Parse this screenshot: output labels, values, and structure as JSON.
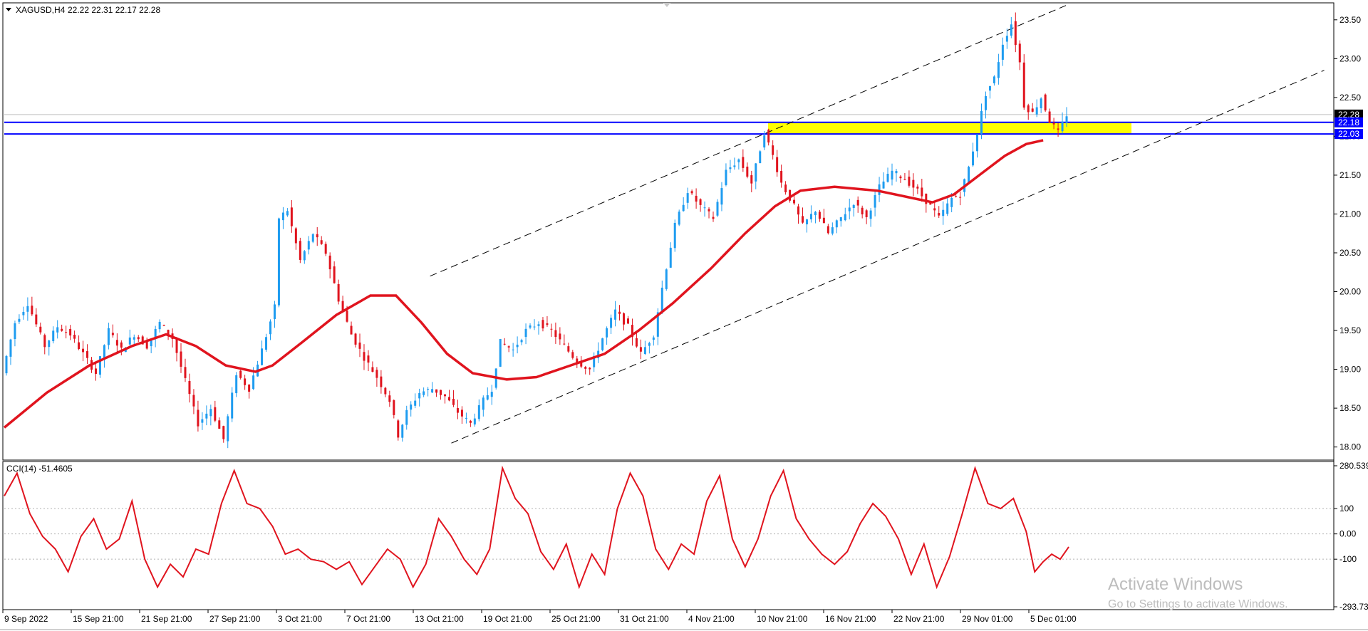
{
  "header": {
    "symbol_label": "XAGUSD,H4",
    "ohlc": "22.22 22.31 22.17 22.28"
  },
  "indicator": {
    "label": "CCI(14) -51.4605"
  },
  "watermark": {
    "line1": "Activate Windows",
    "line2": "Go to Settings to activate Windows."
  },
  "colors": {
    "bull": "#1e9cf0",
    "bear": "#e0141e",
    "ma": "#e0141e",
    "cci": "#e0141e",
    "hline": "#0000ff",
    "zone": "#ffff00",
    "current_tag": "#000000"
  },
  "chart_data": [
    {
      "type": "candlestick",
      "symbol": "XAGUSD",
      "timeframe": "H4",
      "ylim": [
        17.85,
        23.7
      ],
      "y_ticks": [
        "23.50",
        "23.00",
        "22.50",
        "22.00",
        "21.50",
        "21.00",
        "20.50",
        "20.00",
        "19.50",
        "19.00",
        "18.50",
        "18.00"
      ],
      "x_ticks": [
        "9 Sep 2022",
        "15 Sep 21:00",
        "21 Sep 21:00",
        "27 Sep 21:00",
        "3 Oct 21:00",
        "7 Oct 21:00",
        "13 Oct 21:00",
        "19 Oct 21:00",
        "25 Oct 21:00",
        "31 Oct 21:00",
        "4 Nov 21:00",
        "10 Nov 21:00",
        "16 Nov 21:00",
        "22 Nov 21:00",
        "29 Nov 01:00",
        "5 Dec 01:00"
      ],
      "price_tags": [
        {
          "value": "22.28",
          "kind": "current"
        },
        {
          "value": "22.18",
          "kind": "line"
        },
        {
          "value": "22.03",
          "kind": "line"
        }
      ],
      "horizontal_lines": [
        22.18,
        22.03
      ],
      "zone": {
        "from": 22.03,
        "to": 22.18
      },
      "path_points": [
        [
          0,
          18.95
        ],
        [
          6,
          19.6
        ],
        [
          12,
          19.85
        ],
        [
          20,
          19.3
        ],
        [
          26,
          19.55
        ],
        [
          32,
          19.45
        ],
        [
          38,
          19.2
        ],
        [
          44,
          18.95
        ],
        [
          50,
          19.5
        ],
        [
          56,
          19.25
        ],
        [
          62,
          19.45
        ],
        [
          68,
          19.3
        ],
        [
          74,
          19.6
        ],
        [
          80,
          19.4
        ],
        [
          86,
          18.85
        ],
        [
          92,
          18.3
        ],
        [
          98,
          18.5
        ],
        [
          104,
          18.1
        ],
        [
          110,
          18.95
        ],
        [
          116,
          18.75
        ],
        [
          122,
          19.25
        ],
        [
          128,
          19.8
        ],
        [
          130,
          20.95
        ],
        [
          134,
          21.05
        ],
        [
          140,
          20.4
        ],
        [
          146,
          20.75
        ],
        [
          152,
          20.5
        ],
        [
          158,
          19.9
        ],
        [
          164,
          19.45
        ],
        [
          170,
          19.15
        ],
        [
          176,
          18.9
        ],
        [
          182,
          18.6
        ],
        [
          186,
          18.15
        ],
        [
          190,
          18.45
        ],
        [
          196,
          18.7
        ],
        [
          202,
          18.75
        ],
        [
          208,
          18.65
        ],
        [
          214,
          18.45
        ],
        [
          220,
          18.3
        ],
        [
          226,
          18.6
        ],
        [
          230,
          18.75
        ],
        [
          234,
          19.35
        ],
        [
          240,
          19.25
        ],
        [
          246,
          19.5
        ],
        [
          252,
          19.6
        ],
        [
          258,
          19.5
        ],
        [
          264,
          19.3
        ],
        [
          270,
          19.1
        ],
        [
          276,
          19.0
        ],
        [
          282,
          19.4
        ],
        [
          288,
          19.75
        ],
        [
          294,
          19.55
        ],
        [
          300,
          19.2
        ],
        [
          306,
          19.45
        ],
        [
          310,
          20.05
        ],
        [
          316,
          20.85
        ],
        [
          322,
          21.3
        ],
        [
          328,
          21.1
        ],
        [
          334,
          20.95
        ],
        [
          340,
          21.55
        ],
        [
          346,
          21.7
        ],
        [
          352,
          21.4
        ],
        [
          358,
          22.05
        ],
        [
          362,
          21.75
        ],
        [
          366,
          21.4
        ],
        [
          372,
          21.1
        ],
        [
          376,
          20.85
        ],
        [
          382,
          21.05
        ],
        [
          388,
          20.75
        ],
        [
          394,
          20.95
        ],
        [
          400,
          21.15
        ],
        [
          406,
          20.95
        ],
        [
          412,
          21.35
        ],
        [
          418,
          21.55
        ],
        [
          424,
          21.45
        ],
        [
          430,
          21.3
        ],
        [
          436,
          21.1
        ],
        [
          440,
          20.95
        ],
        [
          446,
          21.2
        ],
        [
          450,
          21.25
        ],
        [
          454,
          21.6
        ],
        [
          458,
          22.05
        ],
        [
          462,
          22.55
        ],
        [
          466,
          22.75
        ],
        [
          470,
          23.2
        ],
        [
          474,
          23.45
        ],
        [
          478,
          22.95
        ],
        [
          480,
          22.4
        ],
        [
          484,
          22.3
        ],
        [
          488,
          22.5
        ],
        [
          492,
          22.2
        ],
        [
          496,
          22.05
        ],
        [
          500,
          22.28
        ]
      ],
      "moving_average_points": [
        [
          0,
          18.25
        ],
        [
          20,
          18.7
        ],
        [
          40,
          19.05
        ],
        [
          60,
          19.3
        ],
        [
          76,
          19.45
        ],
        [
          90,
          19.3
        ],
        [
          104,
          19.05
        ],
        [
          118,
          18.97
        ],
        [
          126,
          19.05
        ],
        [
          140,
          19.35
        ],
        [
          156,
          19.7
        ],
        [
          172,
          19.95
        ],
        [
          184,
          19.95
        ],
        [
          196,
          19.6
        ],
        [
          208,
          19.2
        ],
        [
          220,
          18.95
        ],
        [
          236,
          18.87
        ],
        [
          250,
          18.9
        ],
        [
          266,
          19.05
        ],
        [
          282,
          19.2
        ],
        [
          298,
          19.5
        ],
        [
          314,
          19.85
        ],
        [
          332,
          20.3
        ],
        [
          348,
          20.75
        ],
        [
          362,
          21.1
        ],
        [
          374,
          21.3
        ],
        [
          390,
          21.35
        ],
        [
          410,
          21.3
        ],
        [
          424,
          21.22
        ],
        [
          436,
          21.15
        ],
        [
          446,
          21.25
        ],
        [
          458,
          21.5
        ],
        [
          470,
          21.75
        ],
        [
          480,
          21.9
        ],
        [
          488,
          21.95
        ]
      ],
      "channel_lines": [
        {
          "from": [
            200,
            20.2
          ],
          "to": [
            500,
            23.7
          ]
        },
        {
          "from": [
            210,
            18.05
          ],
          "to": [
            620,
            22.85
          ]
        }
      ]
    },
    {
      "type": "line",
      "indicator": "CCI(14)",
      "current_value": -51.4605,
      "ylim": [
        -293.733,
        280.539
      ],
      "y_ticks": [
        "280.539",
        "100",
        "0.00",
        "-100",
        "-293.733"
      ],
      "levels": [
        100,
        -100
      ],
      "points": [
        [
          0,
          150
        ],
        [
          6,
          240
        ],
        [
          12,
          80
        ],
        [
          18,
          -10
        ],
        [
          24,
          -60
        ],
        [
          30,
          -150
        ],
        [
          36,
          -10
        ],
        [
          42,
          60
        ],
        [
          48,
          -60
        ],
        [
          54,
          -20
        ],
        [
          60,
          130
        ],
        [
          66,
          -100
        ],
        [
          72,
          -210
        ],
        [
          78,
          -120
        ],
        [
          84,
          -170
        ],
        [
          90,
          -60
        ],
        [
          96,
          -80
        ],
        [
          102,
          120
        ],
        [
          108,
          250
        ],
        [
          114,
          120
        ],
        [
          120,
          100
        ],
        [
          126,
          30
        ],
        [
          132,
          -80
        ],
        [
          138,
          -60
        ],
        [
          144,
          -100
        ],
        [
          150,
          -110
        ],
        [
          156,
          -140
        ],
        [
          162,
          -110
        ],
        [
          168,
          -200
        ],
        [
          174,
          -130
        ],
        [
          180,
          -60
        ],
        [
          186,
          -100
        ],
        [
          192,
          -210
        ],
        [
          198,
          -120
        ],
        [
          204,
          60
        ],
        [
          210,
          -10
        ],
        [
          216,
          -100
        ],
        [
          222,
          -160
        ],
        [
          228,
          -60
        ],
        [
          234,
          260
        ],
        [
          240,
          140
        ],
        [
          246,
          80
        ],
        [
          252,
          -70
        ],
        [
          258,
          -140
        ],
        [
          264,
          -40
        ],
        [
          270,
          -210
        ],
        [
          276,
          -80
        ],
        [
          282,
          -160
        ],
        [
          288,
          100
        ],
        [
          294,
          240
        ],
        [
          300,
          150
        ],
        [
          306,
          -60
        ],
        [
          312,
          -140
        ],
        [
          318,
          -40
        ],
        [
          324,
          -80
        ],
        [
          330,
          130
        ],
        [
          336,
          230
        ],
        [
          342,
          -20
        ],
        [
          348,
          -130
        ],
        [
          354,
          -20
        ],
        [
          360,
          150
        ],
        [
          366,
          250
        ],
        [
          372,
          60
        ],
        [
          378,
          -20
        ],
        [
          384,
          -80
        ],
        [
          390,
          -120
        ],
        [
          396,
          -70
        ],
        [
          402,
          40
        ],
        [
          408,
          120
        ],
        [
          414,
          70
        ],
        [
          420,
          -20
        ],
        [
          426,
          -160
        ],
        [
          432,
          -40
        ],
        [
          438,
          -210
        ],
        [
          444,
          -90
        ],
        [
          450,
          80
        ],
        [
          456,
          260
        ],
        [
          462,
          120
        ],
        [
          468,
          100
        ],
        [
          474,
          140
        ],
        [
          480,
          10
        ],
        [
          484,
          -150
        ],
        [
          488,
          -110
        ],
        [
          492,
          -80
        ],
        [
          496,
          -100
        ],
        [
          500,
          -51.4605
        ]
      ]
    }
  ]
}
